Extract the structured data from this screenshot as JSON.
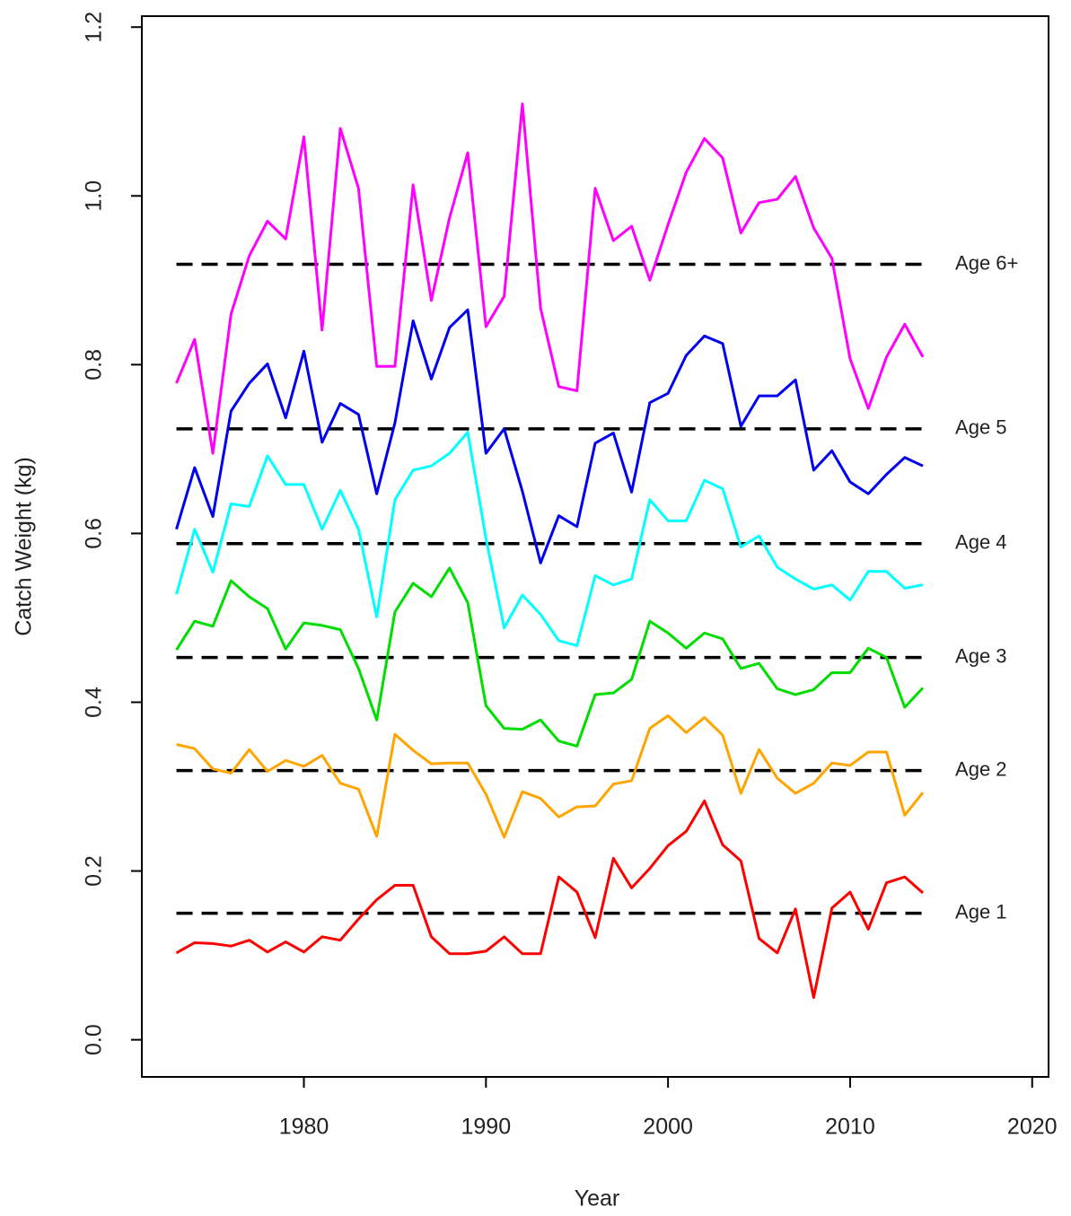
{
  "chart_data": {
    "type": "line",
    "xlabel": "Year",
    "ylabel": "Catch Weight (kg)",
    "x": [
      1973,
      1974,
      1975,
      1976,
      1977,
      1978,
      1979,
      1980,
      1981,
      1982,
      1983,
      1984,
      1985,
      1986,
      1987,
      1988,
      1989,
      1990,
      1991,
      1992,
      1993,
      1994,
      1995,
      1996,
      1997,
      1998,
      1999,
      2000,
      2001,
      2002,
      2003,
      2004,
      2005,
      2006,
      2007,
      2008,
      2009,
      2010,
      2011,
      2012,
      2013,
      2014
    ],
    "series": [
      {
        "color": "#ff00ff",
        "values": [
          0.778,
          0.83,
          0.695,
          0.86,
          0.929,
          0.97,
          0.949,
          1.07,
          0.841,
          1.08,
          1.009,
          0.798,
          0.798,
          1.013,
          0.876,
          0.974,
          1.051,
          0.845,
          0.881,
          1.109,
          0.867,
          0.774,
          0.769,
          1.009,
          0.947,
          0.964,
          0.9,
          0.966,
          1.028,
          1.068,
          1.045,
          0.956,
          0.992,
          0.996,
          1.023,
          0.962,
          0.926,
          0.807,
          0.748,
          0.809,
          0.848,
          0.809
        ]
      },
      {
        "color": "#0000ee",
        "values": [
          0.605,
          0.678,
          0.62,
          0.745,
          0.778,
          0.801,
          0.737,
          0.816,
          0.708,
          0.754,
          0.741,
          0.647,
          0.731,
          0.852,
          0.783,
          0.844,
          0.865,
          0.695,
          0.724,
          0.65,
          0.565,
          0.621,
          0.608,
          0.707,
          0.719,
          0.649,
          0.755,
          0.766,
          0.811,
          0.834,
          0.825,
          0.727,
          0.763,
          0.763,
          0.782,
          0.675,
          0.698,
          0.661,
          0.647,
          0.67,
          0.69,
          0.68
        ]
      },
      {
        "color": "#00ffff",
        "values": [
          0.528,
          0.605,
          0.554,
          0.635,
          0.632,
          0.692,
          0.658,
          0.658,
          0.605,
          0.651,
          0.605,
          0.501,
          0.64,
          0.675,
          0.68,
          0.695,
          0.72,
          0.594,
          0.488,
          0.527,
          0.504,
          0.473,
          0.467,
          0.55,
          0.539,
          0.546,
          0.64,
          0.615,
          0.615,
          0.663,
          0.653,
          0.584,
          0.597,
          0.56,
          0.546,
          0.534,
          0.539,
          0.521,
          0.555,
          0.555,
          0.535,
          0.539
        ]
      },
      {
        "color": "#00dd00",
        "values": [
          0.462,
          0.496,
          0.49,
          0.544,
          0.525,
          0.511,
          0.463,
          0.494,
          0.491,
          0.486,
          0.44,
          0.379,
          0.507,
          0.541,
          0.525,
          0.559,
          0.518,
          0.396,
          0.369,
          0.368,
          0.379,
          0.354,
          0.348,
          0.409,
          0.411,
          0.427,
          0.496,
          0.482,
          0.464,
          0.482,
          0.475,
          0.44,
          0.446,
          0.416,
          0.409,
          0.415,
          0.435,
          0.435,
          0.464,
          0.453,
          0.394,
          0.417
        ]
      },
      {
        "color": "#ffa500",
        "values": [
          0.35,
          0.345,
          0.321,
          0.316,
          0.344,
          0.318,
          0.331,
          0.324,
          0.337,
          0.304,
          0.297,
          0.241,
          0.362,
          0.343,
          0.327,
          0.328,
          0.328,
          0.291,
          0.24,
          0.294,
          0.286,
          0.264,
          0.276,
          0.277,
          0.303,
          0.307,
          0.369,
          0.384,
          0.364,
          0.382,
          0.361,
          0.292,
          0.344,
          0.31,
          0.292,
          0.304,
          0.328,
          0.325,
          0.341,
          0.341,
          0.266,
          0.293
        ]
      },
      {
        "color": "#ff0000",
        "values": [
          0.103,
          0.115,
          0.114,
          0.111,
          0.118,
          0.104,
          0.116,
          0.104,
          0.122,
          0.118,
          0.143,
          0.166,
          0.183,
          0.183,
          0.122,
          0.102,
          0.102,
          0.105,
          0.122,
          0.102,
          0.102,
          0.193,
          0.175,
          0.121,
          0.215,
          0.18,
          0.203,
          0.23,
          0.247,
          0.283,
          0.231,
          0.212,
          0.12,
          0.103,
          0.155,
          0.05,
          0.156,
          0.175,
          0.131,
          0.186,
          0.193,
          0.174
        ]
      }
    ],
    "reference_lines": [
      {
        "label": "Age 6+",
        "value": 0.919
      },
      {
        "label": "Age 5",
        "value": 0.724
      },
      {
        "label": "Age 4",
        "value": 0.588
      },
      {
        "label": "Age 3",
        "value": 0.453
      },
      {
        "label": "Age 2",
        "value": 0.319
      },
      {
        "label": "Age 1",
        "value": 0.15
      }
    ],
    "xlim": [
      1971.1,
      2020.9
    ],
    "xticks": [
      1980,
      1990,
      2000,
      2010,
      2020
    ],
    "ylim": [
      -0.044,
      1.213
    ],
    "yticks": [
      {
        "value": 0,
        "label": "0.0"
      },
      0.2,
      0.4,
      0.6,
      0.8,
      {
        "value": 1,
        "label": "1.0"
      },
      1.2
    ]
  }
}
